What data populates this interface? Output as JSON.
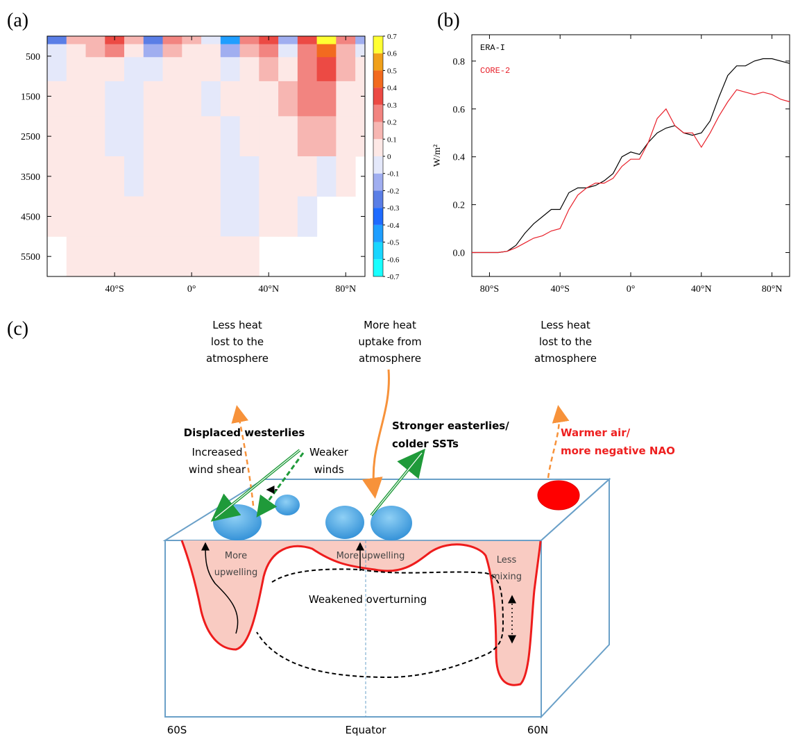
{
  "chart_data": [
    {
      "type": "heatmap",
      "panel_label": "(a)",
      "x": [
        -70,
        -60,
        -50,
        -40,
        -30,
        -20,
        -10,
        0,
        10,
        20,
        30,
        40,
        50,
        60,
        70,
        80,
        90
      ],
      "y": [
        100,
        300,
        750,
        1500,
        2500,
        3500,
        4500,
        5500
      ],
      "z": [
        [
          -0.3,
          0.1,
          0.1,
          0.3,
          0.1,
          -0.3,
          0.2,
          0.1,
          -0.1,
          -0.5,
          0.2,
          0.3,
          -0.2,
          0.3,
          0.6,
          0.2,
          -0.2
        ],
        [
          -0.1,
          0.05,
          0.1,
          0.2,
          0.05,
          -0.2,
          0.1,
          0.05,
          0,
          -0.2,
          0.1,
          0.2,
          -0.1,
          0.2,
          0.4,
          0.1,
          -0.05
        ],
        [
          -0.05,
          0.05,
          0.05,
          0.05,
          -0.05,
          -0.05,
          0.05,
          0.05,
          0,
          -0.05,
          0.05,
          0.1,
          0.05,
          0.2,
          0.3,
          0.1,
          0
        ],
        [
          0.05,
          0.05,
          0.05,
          -0.05,
          -0.05,
          0.05,
          0.05,
          0,
          -0.05,
          0.05,
          0.05,
          0.05,
          0.1,
          0.2,
          0.25,
          0.05,
          0
        ],
        [
          0.05,
          0.05,
          0.05,
          -0.05,
          -0.05,
          0.05,
          0.05,
          0.05,
          0.05,
          -0.05,
          0.05,
          0.05,
          0.05,
          0.1,
          0.1,
          0.05,
          0
        ],
        [
          0.05,
          0.05,
          0.05,
          0.05,
          -0.05,
          0.05,
          0.05,
          0.05,
          0.05,
          -0.05,
          -0.05,
          0.05,
          0.05,
          0.05,
          -0.05,
          0.05,
          null
        ],
        [
          0.05,
          0.05,
          0.05,
          0.05,
          0.05,
          0.05,
          0.05,
          0.05,
          0.05,
          -0.05,
          -0.05,
          0.05,
          0.05,
          -0.05,
          null,
          null,
          null
        ],
        [
          null,
          0.05,
          0.05,
          0.05,
          0.05,
          0.05,
          0.05,
          0.05,
          0.05,
          0.05,
          0.05,
          null,
          null,
          null,
          null,
          null,
          null
        ]
      ],
      "xlim": [
        -75,
        90
      ],
      "ylim": [
        0,
        6000
      ],
      "y_inverted": true,
      "xticks": [
        {
          "value": -40,
          "label": "40°S"
        },
        {
          "value": 0,
          "label": "0°"
        },
        {
          "value": 40,
          "label": "40°N"
        },
        {
          "value": 80,
          "label": "80°N"
        }
      ],
      "yticks": [
        500,
        1500,
        2500,
        3500,
        4500,
        5500
      ],
      "clevels": [
        -0.7,
        -0.6,
        -0.5,
        -0.4,
        -0.3,
        -0.2,
        -0.1,
        0,
        0.1,
        0.2,
        0.3,
        0.4,
        0.5,
        0.6,
        0.7
      ],
      "colors": [
        "#19ffff",
        "#19d6ff",
        "#1f9eff",
        "#1f6bff",
        "#5a7ee6",
        "#a0aef0",
        "#e4e8fa",
        "#fde8e6",
        "#f7b6b2",
        "#f28480",
        "#ec4a44",
        "#f26a1f",
        "#f0a01a",
        "#ffff33"
      ]
    },
    {
      "type": "line",
      "panel_label": "(b)",
      "ylabel": "W/m²",
      "x": [
        -90,
        -85,
        -80,
        -75,
        -70,
        -65,
        -60,
        -55,
        -50,
        -45,
        -40,
        -35,
        -30,
        -25,
        -20,
        -15,
        -10,
        -5,
        0,
        5,
        10,
        15,
        20,
        25,
        30,
        35,
        40,
        45,
        50,
        55,
        60,
        65,
        70,
        75,
        80,
        85,
        90
      ],
      "series": [
        {
          "name": "ERA-I",
          "color": "#000000",
          "values": [
            0,
            0,
            0,
            0,
            0.005,
            0.03,
            0.08,
            0.12,
            0.15,
            0.18,
            0.18,
            0.25,
            0.27,
            0.27,
            0.28,
            0.3,
            0.33,
            0.4,
            0.42,
            0.41,
            0.46,
            0.5,
            0.52,
            0.53,
            0.5,
            0.49,
            0.5,
            0.55,
            0.65,
            0.74,
            0.78,
            0.78,
            0.8,
            0.81,
            0.81,
            0.8,
            0.79
          ]
        },
        {
          "name": "CORE-2",
          "color": "#e8202a",
          "values": [
            0,
            0,
            0,
            0,
            0.005,
            0.02,
            0.04,
            0.06,
            0.07,
            0.09,
            0.1,
            0.18,
            0.24,
            0.27,
            0.29,
            0.29,
            0.31,
            0.36,
            0.39,
            0.39,
            0.46,
            0.56,
            0.6,
            0.53,
            0.5,
            0.5,
            0.44,
            0.5,
            0.57,
            0.63,
            0.68,
            0.67,
            0.66,
            0.67,
            0.66,
            0.64,
            0.63
          ]
        }
      ],
      "xlim": [
        -90,
        90
      ],
      "ylim": [
        -0.1,
        0.91
      ],
      "xticks": [
        {
          "value": -80,
          "label": "80°S"
        },
        {
          "value": -40,
          "label": "40°S"
        },
        {
          "value": 0,
          "label": "0°"
        },
        {
          "value": 40,
          "label": "40°N"
        },
        {
          "value": 80,
          "label": "80°N"
        }
      ],
      "yticks": [
        {
          "value": 0,
          "label": "0.0"
        },
        0.2,
        0.4,
        0.6,
        0.8
      ]
    }
  ],
  "diagram": {
    "panel_label": "(c)",
    "labels": {
      "left_heat": [
        "Less heat",
        "lost to the",
        "atmosphere"
      ],
      "mid_heat": [
        "More heat",
        "uptake from",
        "atmosphere"
      ],
      "right_heat": [
        "Less heat",
        "lost to the",
        "atmosphere"
      ],
      "westerlies": [
        "Displaced westerlies"
      ],
      "shear": [
        "Increased",
        "wind shear"
      ],
      "weaker": [
        "Weaker",
        "winds"
      ],
      "easterlies": [
        "Stronger easterlies/",
        "colder SSTs"
      ],
      "nao": [
        "Warmer air/",
        "more negative NAO"
      ],
      "upwelling_south": [
        "More",
        "upwelling"
      ],
      "upwelling_eq": [
        "More upwelling"
      ],
      "mixing": [
        "Less",
        "mixing"
      ],
      "overturning": [
        "Weakened overturning"
      ],
      "axis": [
        "60S",
        "Equator",
        "60N"
      ]
    }
  }
}
